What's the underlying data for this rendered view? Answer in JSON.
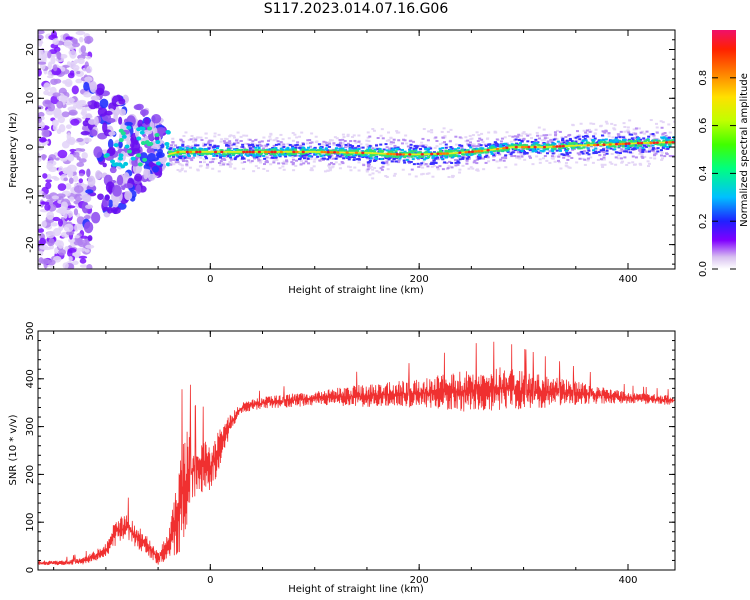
{
  "title": "S117.2023.014.07.16.G06",
  "chart_data": [
    {
      "type": "heatmap",
      "title": "S117.2023.014.07.16.G06",
      "xlabel": "Height of straight line (km)",
      "ylabel": "Frequency (Hz)",
      "xlim": [
        -165,
        445
      ],
      "ylim": [
        -25,
        24
      ],
      "xticks": [
        "0",
        "200",
        "400"
      ],
      "xtick_values": [
        0,
        200,
        400
      ],
      "yticks": [
        "20",
        "10",
        "0",
        "-10",
        "-20"
      ],
      "ytick_values": [
        20,
        10,
        0,
        -10,
        -20
      ],
      "colorbar": {
        "label": "Normalized spectral amplitude",
        "ticks": [
          "0.0",
          "0.2",
          "0.4",
          "0.6",
          "0.8"
        ],
        "tick_values": [
          0.0,
          0.2,
          0.4,
          0.6,
          0.8
        ],
        "range": [
          0,
          1
        ]
      },
      "ridge": {
        "x": [
          -40,
          -30,
          0,
          50,
          100,
          150,
          180,
          200,
          230,
          260,
          290,
          320,
          350,
          380,
          410,
          445
        ],
        "frequency": [
          -1.5,
          -1.0,
          -1.0,
          -1.0,
          -1.0,
          -1.2,
          -1.5,
          -1.5,
          -1.3,
          -0.8,
          0,
          0,
          0.3,
          0.5,
          0.8,
          1.0
        ]
      },
      "grid": false
    },
    {
      "type": "line",
      "xlabel": "Height of straight line (km)",
      "ylabel": "SNR (10 * v/v)",
      "xlim": [
        -165,
        445
      ],
      "ylim": [
        0,
        500
      ],
      "xticks": [
        "0",
        "200",
        "400"
      ],
      "xtick_values": [
        0,
        200,
        400
      ],
      "yticks": [
        "0",
        "100",
        "200",
        "300",
        "400",
        "500"
      ],
      "ytick_values": [
        0,
        100,
        200,
        300,
        400,
        500
      ],
      "series": [
        {
          "color": "#f03030",
          "x": [
            -165,
            -140,
            -120,
            -100,
            -90,
            -80,
            -70,
            -60,
            -50,
            -40,
            -30,
            -25,
            -20,
            -15,
            -10,
            0,
            10,
            20,
            30,
            50,
            80,
            100,
            150,
            200,
            250,
            280,
            300,
            350,
            400,
            445
          ],
          "values": [
            15,
            15,
            20,
            40,
            80,
            90,
            70,
            50,
            25,
            50,
            120,
            180,
            200,
            210,
            220,
            210,
            260,
            310,
            340,
            350,
            355,
            360,
            365,
            370,
            375,
            380,
            375,
            370,
            360,
            355
          ],
          "spread": [
            5,
            5,
            8,
            15,
            30,
            30,
            25,
            20,
            15,
            30,
            90,
            110,
            90,
            60,
            60,
            50,
            40,
            20,
            12,
            12,
            15,
            15,
            25,
            30,
            45,
            45,
            40,
            25,
            12,
            10
          ]
        }
      ],
      "grid": false
    }
  ]
}
